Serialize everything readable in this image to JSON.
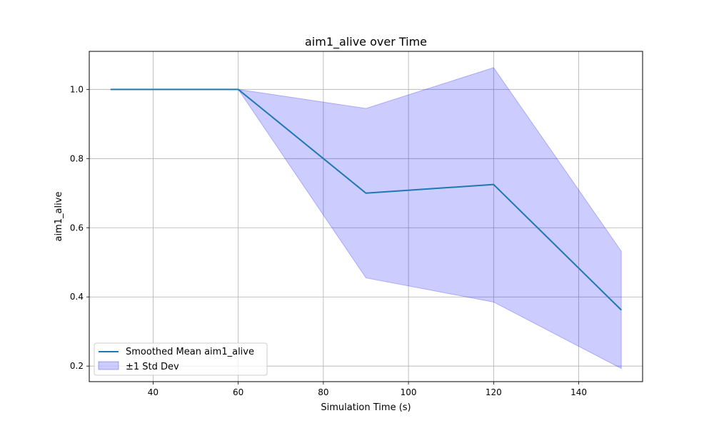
{
  "chart_data": {
    "type": "line",
    "title": "aim1_alive over Time",
    "xlabel": "Simulation Time (s)",
    "ylabel": "aim1_alive",
    "xlim": [
      25,
      155
    ],
    "ylim": [
      0.155,
      1.11
    ],
    "xticks": [
      40,
      60,
      80,
      100,
      120,
      140
    ],
    "yticks": [
      0.2,
      0.4,
      0.6,
      0.8,
      1.0
    ],
    "ytick_labels": [
      "0.2",
      "0.4",
      "0.6",
      "0.8",
      "1.0"
    ],
    "grid": true,
    "legend_position": "lower-left",
    "x": [
      30,
      60,
      90,
      120,
      150
    ],
    "series": [
      {
        "name": "Smoothed Mean aim1_alive",
        "values": [
          1.0,
          1.0,
          0.7,
          0.725,
          0.362
        ],
        "color": "#1f77b4"
      }
    ],
    "band": {
      "name": "±1 Std Dev",
      "lower": [
        1.0,
        1.0,
        0.455,
        0.385,
        0.193
      ],
      "upper": [
        1.0,
        1.0,
        0.945,
        1.063,
        0.532
      ],
      "fill": "#0000ff",
      "fill_opacity": 0.2
    }
  }
}
